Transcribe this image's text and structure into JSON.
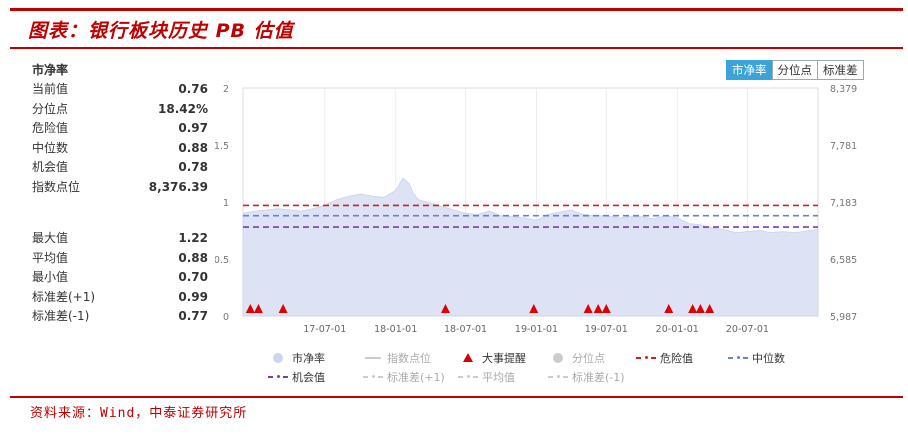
{
  "title": "图表：银行板块历史 PB 估值",
  "source": "资料来源：Wind，中泰证券研究所",
  "panel": {
    "title": "市净率",
    "stats_top": [
      {
        "label": "当前值",
        "value": "0.76"
      },
      {
        "label": "分位点",
        "value": "18.42%"
      },
      {
        "label": "危险值",
        "value": "0.97"
      },
      {
        "label": "中位数",
        "value": "0.88"
      },
      {
        "label": "机会值",
        "value": "0.78"
      },
      {
        "label": "指数点位",
        "value": "8,376.39"
      }
    ],
    "stats_bottom": [
      {
        "label": "最大值",
        "value": "1.22"
      },
      {
        "label": "平均值",
        "value": "0.88"
      },
      {
        "label": "最小值",
        "value": "0.70"
      },
      {
        "label": "标准差(+1)",
        "value": "0.99"
      },
      {
        "label": "标准差(-1)",
        "value": "0.77"
      }
    ]
  },
  "buttons": [
    {
      "label": "市净率",
      "active": true
    },
    {
      "label": "分位点",
      "active": false
    },
    {
      "label": "标准差",
      "active": false
    }
  ],
  "legend": [
    {
      "label": "市净率",
      "kind": "dot",
      "color": "#ccd6f0",
      "dim": false
    },
    {
      "label": "指数点位",
      "kind": "line",
      "color": "#cccccc",
      "dim": true
    },
    {
      "label": "大事提醒",
      "kind": "triangle",
      "color": "#dd0000",
      "dim": false
    },
    {
      "label": "分位点",
      "kind": "dot",
      "color": "#cccccc",
      "dim": true
    },
    {
      "label": "危险值",
      "kind": "dash",
      "color": "#cc2222",
      "dim": false
    },
    {
      "label": "中位数",
      "kind": "dash",
      "color": "#6f7fc8",
      "dim": false
    },
    {
      "label": "机会值",
      "kind": "dash",
      "color": "#7a3fa0",
      "dim": false
    },
    {
      "label": "标准差(+1)",
      "kind": "dash",
      "color": "#cccccc",
      "dim": true
    },
    {
      "label": "平均值",
      "kind": "dash",
      "color": "#cccccc",
      "dim": true
    },
    {
      "label": "标准差(-1)",
      "kind": "dash",
      "color": "#cccccc",
      "dim": true
    }
  ],
  "chart_data": {
    "type": "area",
    "y_left": {
      "ticks": [
        "0",
        "0.5",
        "1",
        "1.5",
        "2"
      ],
      "ylim": [
        0,
        2
      ]
    },
    "y_right": {
      "ticks": [
        "5,987",
        "6,585",
        "7,183",
        "7,781",
        "8,379"
      ],
      "ylim": [
        5987,
        8379
      ]
    },
    "x_ticks": [
      {
        "label": "17-07-01",
        "date": "2017-07-01"
      },
      {
        "label": "18-01-01",
        "date": "2018-01-01"
      },
      {
        "label": "18-07-01",
        "date": "2018-07-01"
      },
      {
        "label": "19-01-01",
        "date": "2019-01-01"
      },
      {
        "label": "19-07-01",
        "date": "2019-07-01"
      },
      {
        "label": "20-01-01",
        "date": "2020-01-01"
      },
      {
        "label": "20-07-01",
        "date": "2020-07-01"
      }
    ],
    "x_range": [
      "2016-12-01",
      "2020-12-31"
    ],
    "series": [
      {
        "name": "市净率",
        "color": "#dde3f5",
        "points": [
          [
            "2016-12-01",
            0.9
          ],
          [
            "2017-01-01",
            0.92
          ],
          [
            "2017-02-01",
            0.93
          ],
          [
            "2017-03-01",
            0.94
          ],
          [
            "2017-04-01",
            0.93
          ],
          [
            "2017-05-01",
            0.92
          ],
          [
            "2017-06-01",
            0.94
          ],
          [
            "2017-07-01",
            0.97
          ],
          [
            "2017-08-01",
            1.02
          ],
          [
            "2017-09-01",
            1.05
          ],
          [
            "2017-10-01",
            1.07
          ],
          [
            "2017-11-01",
            1.05
          ],
          [
            "2017-12-01",
            1.04
          ],
          [
            "2018-01-01",
            1.1
          ],
          [
            "2018-01-20",
            1.21
          ],
          [
            "2018-02-05",
            1.16
          ],
          [
            "2018-02-15",
            1.08
          ],
          [
            "2018-03-01",
            1.02
          ],
          [
            "2018-04-01",
            0.99
          ],
          [
            "2018-05-01",
            0.96
          ],
          [
            "2018-06-01",
            0.93
          ],
          [
            "2018-07-01",
            0.9
          ],
          [
            "2018-08-01",
            0.89
          ],
          [
            "2018-09-01",
            0.92
          ],
          [
            "2018-10-01",
            0.88
          ],
          [
            "2018-11-01",
            0.87
          ],
          [
            "2018-12-01",
            0.86
          ],
          [
            "2019-01-01",
            0.84
          ],
          [
            "2019-02-01",
            0.89
          ],
          [
            "2019-03-01",
            0.91
          ],
          [
            "2019-04-01",
            0.93
          ],
          [
            "2019-05-01",
            0.89
          ],
          [
            "2019-06-01",
            0.88
          ],
          [
            "2019-07-01",
            0.88
          ],
          [
            "2019-08-01",
            0.86
          ],
          [
            "2019-09-01",
            0.87
          ],
          [
            "2019-10-01",
            0.87
          ],
          [
            "2019-11-01",
            0.85
          ],
          [
            "2019-12-01",
            0.88
          ],
          [
            "2020-01-01",
            0.86
          ],
          [
            "2020-02-01",
            0.81
          ],
          [
            "2020-03-01",
            0.8
          ],
          [
            "2020-04-01",
            0.77
          ],
          [
            "2020-05-01",
            0.76
          ],
          [
            "2020-06-01",
            0.73
          ],
          [
            "2020-07-01",
            0.74
          ],
          [
            "2020-08-01",
            0.75
          ],
          [
            "2020-09-01",
            0.73
          ],
          [
            "2020-10-01",
            0.74
          ],
          [
            "2020-11-01",
            0.73
          ],
          [
            "2020-12-31",
            0.76
          ]
        ]
      },
      {
        "name": "危险值",
        "value": 0.97,
        "color": "#cc2222"
      },
      {
        "name": "中位数",
        "value": 0.88,
        "color": "#6f7fc8"
      },
      {
        "name": "机会值",
        "value": 0.78,
        "color": "#7a3fa0"
      }
    ],
    "events": {
      "name": "大事提醒",
      "color": "#dd0000",
      "dates": [
        "2016-12-20",
        "2017-01-10",
        "2017-03-15",
        "2018-05-10",
        "2018-12-25",
        "2019-05-15",
        "2019-06-10",
        "2019-07-01",
        "2019-12-10",
        "2020-02-10",
        "2020-03-01",
        "2020-03-25"
      ]
    }
  }
}
